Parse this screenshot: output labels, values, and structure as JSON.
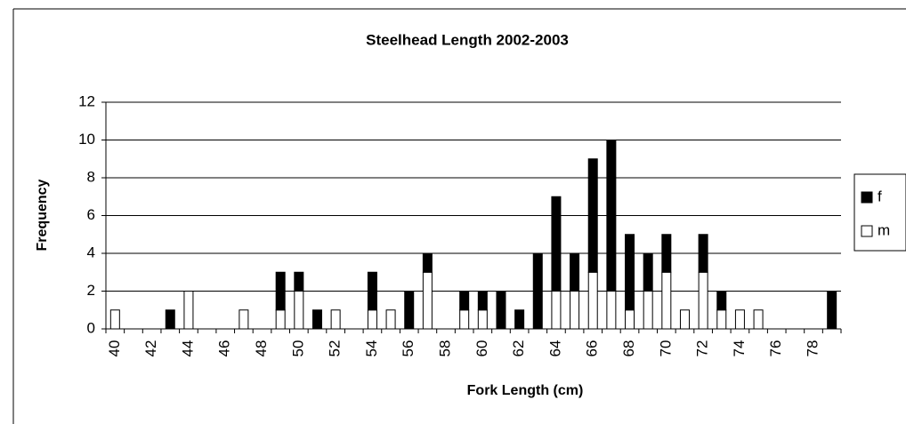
{
  "chart_data": {
    "type": "stacked_bar",
    "title": "Steelhead Length 2002-2003",
    "xlabel": "Fork Length (cm)",
    "ylabel": "Frequency",
    "categories": [
      "40",
      null,
      "42",
      null,
      "44",
      null,
      "46",
      null,
      "48",
      null,
      "50",
      null,
      "52",
      null,
      "54",
      null,
      "56",
      null,
      "58",
      null,
      "60",
      null,
      "62",
      null,
      "64",
      null,
      "66",
      null,
      "68",
      null,
      "70",
      null,
      "72",
      null,
      "74",
      null,
      "76",
      null,
      "78",
      null
    ],
    "series": [
      {
        "name": "m",
        "color": "#ffffff",
        "values": [
          1,
          0,
          0,
          0,
          2,
          0,
          0,
          1,
          0,
          1,
          2,
          0,
          1,
          0,
          1,
          1,
          0,
          3,
          0,
          1,
          1,
          0,
          0,
          0,
          2,
          2,
          3,
          2,
          1,
          2,
          3,
          1,
          3,
          1,
          1,
          1,
          0,
          0,
          0,
          0
        ]
      },
      {
        "name": "f",
        "color": "#000000",
        "values": [
          0,
          0,
          0,
          1,
          0,
          0,
          0,
          0,
          0,
          2,
          1,
          1,
          0,
          0,
          2,
          0,
          2,
          1,
          0,
          1,
          1,
          2,
          1,
          4,
          5,
          2,
          6,
          8,
          4,
          2,
          2,
          0,
          2,
          1,
          0,
          0,
          0,
          0,
          0,
          2
        ]
      }
    ],
    "ylim": [
      0,
      12
    ],
    "yticks": [
      0,
      2,
      4,
      6,
      8,
      10,
      12
    ],
    "grid": true,
    "legend": "right"
  }
}
